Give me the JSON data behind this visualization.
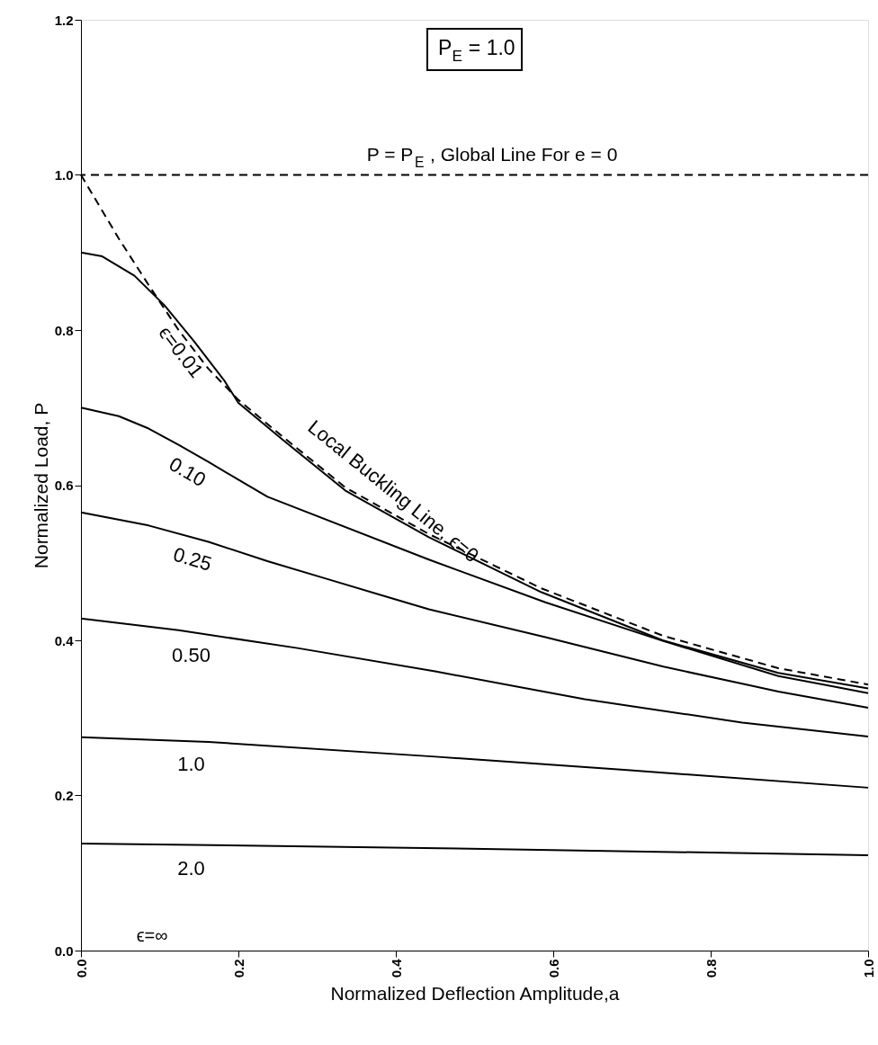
{
  "chart_data": {
    "type": "line",
    "xlabel": "Normalized Deflection Amplitude,a",
    "ylabel": "Normalized Load, P",
    "xlim": [
      0,
      1.0
    ],
    "ylim": [
      0,
      1.2
    ],
    "xticks": [
      {
        "value": 0,
        "label": "0.0"
      },
      {
        "value": 0.2,
        "label": "0.2"
      },
      {
        "value": 0.4,
        "label": "0.4"
      },
      {
        "value": 0.6,
        "label": "0.6"
      },
      {
        "value": 0.8,
        "label": "0.8"
      },
      {
        "value": 1.0,
        "label": "1.0"
      }
    ],
    "yticks": [
      {
        "value": 0,
        "label": "0.0"
      },
      {
        "value": 0.2,
        "label": "0.2"
      },
      {
        "value": 0.4,
        "label": "0.4"
      },
      {
        "value": 0.6,
        "label": "0.6"
      },
      {
        "value": 0.8,
        "label": "0.8"
      },
      {
        "value": 1.0,
        "label": "1.0"
      },
      {
        "value": 1.2,
        "label": "1.2"
      }
    ],
    "grid": false,
    "series": [
      {
        "name": "Local Buckling Line, ϵ=0",
        "color": "#000000",
        "line_style": "dashed",
        "x": [
          0,
          0.048,
          0.086,
          0.124,
          0.162,
          0.2,
          0.257,
          0.336,
          0.442,
          0.585,
          0.739,
          0.886,
          1.0
        ],
        "values": [
          1.0,
          0.918,
          0.858,
          0.8,
          0.75,
          0.71,
          0.662,
          0.597,
          0.537,
          0.467,
          0.406,
          0.364,
          0.343
        ]
      },
      {
        "name": "ϵ=0.01",
        "color": "#000000",
        "line_style": "solid",
        "x": [
          0,
          0.027,
          0.068,
          0.106,
          0.144,
          0.182,
          0.2,
          0.257,
          0.336,
          0.442,
          0.585,
          0.739,
          0.886,
          1.0
        ],
        "values": [
          0.9,
          0.895,
          0.87,
          0.832,
          0.785,
          0.735,
          0.706,
          0.658,
          0.593,
          0.533,
          0.462,
          0.4,
          0.358,
          0.338
        ]
      },
      {
        "name": "0.10",
        "color": "#000000",
        "line_style": "solid",
        "x": [
          0,
          0.048,
          0.086,
          0.124,
          0.162,
          0.2,
          0.237,
          0.442,
          0.59,
          0.74,
          0.886,
          1.0
        ],
        "values": [
          0.7,
          0.689,
          0.673,
          0.652,
          0.63,
          0.607,
          0.585,
          0.504,
          0.449,
          0.399,
          0.354,
          0.332
        ]
      },
      {
        "name": "0.25",
        "color": "#000000",
        "line_style": "solid",
        "x": [
          0,
          0.086,
          0.162,
          0.237,
          0.313,
          0.389,
          0.442,
          0.59,
          0.74,
          0.886,
          1.0
        ],
        "values": [
          0.565,
          0.548,
          0.527,
          0.502,
          0.479,
          0.456,
          0.44,
          0.404,
          0.366,
          0.334,
          0.313
        ]
      },
      {
        "name": "0.50",
        "color": "#000000",
        "line_style": "solid",
        "x": [
          0,
          0.124,
          0.275,
          0.45,
          0.64,
          0.84,
          1.0
        ],
        "values": [
          0.428,
          0.413,
          0.39,
          0.36,
          0.324,
          0.294,
          0.276
        ]
      },
      {
        "name": "1.0",
        "color": "#000000",
        "line_style": "solid",
        "x": [
          0,
          0.162,
          0.45,
          0.69,
          1.0
        ],
        "values": [
          0.275,
          0.269,
          0.25,
          0.233,
          0.21
        ]
      },
      {
        "name": "2.0",
        "color": "#000000",
        "line_style": "solid",
        "x": [
          0,
          0.457,
          1.0
        ],
        "values": [
          0.138,
          0.132,
          0.123
        ]
      }
    ],
    "ref_lines": [
      {
        "axis": "y",
        "value": 1.0,
        "line_style": "dashed",
        "color": "#000000"
      }
    ],
    "annotations": [
      "P$_{E}$ = 1.0",
      "ϵ=∞",
      {
        "text": "P = P$_{E}$ , Global Line For e = 0",
        "x": 0.53,
        "y": 1.0
      }
    ]
  }
}
